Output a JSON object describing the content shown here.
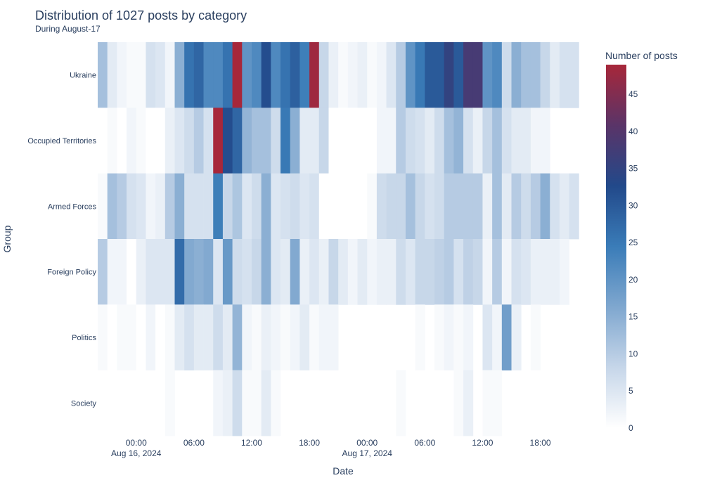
{
  "chart_data": {
    "type": "heatmap",
    "title": "Distribution of 1027 posts by category",
    "subtitle": "During August-17",
    "xlabel": "Date",
    "ylabel": "Group",
    "colorbar_title": "Number of posts",
    "colorbar_range": [
      0,
      49
    ],
    "colorbar_ticks": [
      "0",
      "5",
      "10",
      "15",
      "20",
      "25",
      "30",
      "35",
      "40",
      "45"
    ],
    "colorscale": [
      "#ffffff",
      "#c6d6e9",
      "#7fa7cf",
      "#3a7cb8",
      "#22498a",
      "#5a3468",
      "#a7273a"
    ],
    "x_ticks": [
      {
        "label": "00:00",
        "sub": "Aug 16, 2024",
        "hour": 0
      },
      {
        "label": "06:00",
        "sub": "",
        "hour": 6
      },
      {
        "label": "12:00",
        "sub": "",
        "hour": 12
      },
      {
        "label": "18:00",
        "sub": "",
        "hour": 18
      },
      {
        "label": "00:00",
        "sub": "Aug 17, 2024",
        "hour": 24
      },
      {
        "label": "06:00",
        "sub": "",
        "hour": 30
      },
      {
        "label": "12:00",
        "sub": "",
        "hour": 36
      },
      {
        "label": "18:00",
        "sub": "",
        "hour": 42
      }
    ],
    "x_hours": [
      -3.5,
      -2.5,
      -1.5,
      -0.5,
      0.5,
      1.5,
      2.5,
      3.5,
      4.5,
      5.5,
      6.5,
      7.5,
      8.5,
      9.5,
      10.5,
      11.5,
      12.5,
      13.5,
      14.5,
      15.5,
      16.5,
      17.5,
      18.5,
      19.5,
      20.5,
      21.5,
      22.5,
      23.5,
      24.5,
      25.5,
      26.5,
      27.5,
      28.5,
      29.5,
      30.5,
      31.5,
      32.5,
      33.5,
      34.5,
      35.5,
      36.5,
      37.5,
      38.5,
      39.5,
      40.5,
      41.5,
      42.5,
      43.5,
      44.5,
      45.5,
      46.5
    ],
    "groups": [
      "Ukraine",
      "Occupied Territories",
      "Armed Forces",
      "Foreign Policy",
      "Politics",
      "Society"
    ],
    "z": [
      [
        12,
        4,
        2,
        1,
        1,
        6,
        5,
        2,
        15,
        26,
        28,
        22,
        22,
        26,
        49,
        20,
        22,
        32,
        22,
        26,
        29,
        24,
        48,
        8,
        3,
        1,
        2,
        3,
        1,
        2,
        5,
        10,
        20,
        25,
        30,
        30,
        35,
        30,
        38,
        38,
        20,
        22,
        7,
        15,
        12,
        12,
        8,
        4,
        6,
        6,
        null
      ],
      [
        0,
        1,
        0,
        2,
        1,
        0,
        0,
        3,
        5,
        7,
        10,
        6,
        49,
        32,
        28,
        14,
        12,
        12,
        7,
        25,
        15,
        4,
        4,
        8,
        0,
        0,
        0,
        0,
        0,
        2,
        2,
        10,
        7,
        6,
        4,
        7,
        12,
        14,
        6,
        3,
        8,
        12,
        6,
        4,
        4,
        2,
        2,
        null,
        null,
        null,
        null
      ],
      [
        1,
        12,
        10,
        6,
        5,
        2,
        3,
        10,
        15,
        6,
        6,
        6,
        24,
        8,
        11,
        5,
        7,
        15,
        5,
        6,
        7,
        5,
        6,
        0,
        0,
        0,
        0,
        0,
        1,
        7,
        8,
        8,
        12,
        8,
        6,
        7,
        10,
        10,
        10,
        10,
        3,
        12,
        4,
        10,
        7,
        10,
        15,
        6,
        4,
        6,
        null
      ],
      [
        10,
        2,
        2,
        0,
        3,
        5,
        5,
        5,
        27,
        16,
        15,
        16,
        5,
        19,
        7,
        6,
        8,
        15,
        5,
        4,
        16,
        3,
        5,
        3,
        8,
        4,
        2,
        4,
        2,
        3,
        3,
        7,
        5,
        8,
        8,
        9,
        10,
        6,
        9,
        8,
        2,
        10,
        2,
        6,
        5,
        3,
        3,
        3,
        2,
        null,
        null
      ],
      [
        1,
        0,
        1,
        1,
        0,
        2,
        0,
        1,
        4,
        6,
        4,
        4,
        7,
        4,
        14,
        2,
        1,
        3,
        2,
        1,
        2,
        4,
        1,
        2,
        2,
        null,
        null,
        null,
        null,
        null,
        null,
        null,
        null,
        1,
        null,
        1,
        2,
        1,
        2,
        null,
        5,
        2,
        18,
        3,
        null,
        1,
        null,
        null,
        null,
        null,
        null
      ],
      [
        null,
        null,
        null,
        null,
        null,
        null,
        null,
        1,
        null,
        null,
        null,
        null,
        2,
        3,
        7,
        1,
        1,
        4,
        1,
        null,
        null,
        null,
        null,
        null,
        null,
        null,
        null,
        null,
        null,
        null,
        null,
        1,
        null,
        null,
        null,
        null,
        null,
        1,
        3,
        null,
        1,
        1,
        null,
        null,
        null,
        null,
        null,
        null,
        null,
        null,
        null
      ]
    ]
  }
}
